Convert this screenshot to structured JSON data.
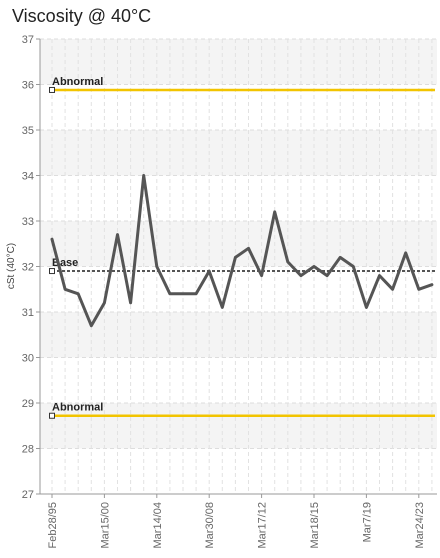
{
  "chart_data": {
    "type": "line",
    "title": "Viscosity @ 40°C",
    "ylabel": "cSt (40°C)",
    "xlabel": "",
    "ylim": [
      27,
      37
    ],
    "yticks": [
      27,
      28,
      29,
      30,
      31,
      32,
      33,
      34,
      35,
      36,
      37
    ],
    "grid": true,
    "x_tick_labels": [
      "Feb28/95",
      "Mar15/00",
      "Mar14/04",
      "Mar30/08",
      "Mar17/12",
      "Mar18/15",
      "Mar7/19",
      "Mar24/23"
    ],
    "x_tick_positions": [
      0,
      4,
      8,
      12,
      16,
      20,
      24,
      28
    ],
    "series": [
      {
        "values": [
          32.6,
          31.5,
          31.4,
          30.7,
          31.2,
          32.7,
          31.2,
          34.0,
          32.0,
          31.4,
          31.4,
          31.4,
          31.9,
          31.1,
          32.2,
          32.4,
          31.8,
          33.2,
          32.1,
          31.8,
          32.0,
          31.8,
          32.2,
          32.0,
          31.1,
          31.8,
          31.5,
          32.3,
          31.5,
          31.6
        ],
        "color": "#555555"
      }
    ],
    "reference_lines": [
      {
        "label": "Abnormal",
        "value": 35.88,
        "color": "#f2c400",
        "style": "solid"
      },
      {
        "label": "Base",
        "value": 31.9,
        "color": "#555555",
        "style": "dashed"
      },
      {
        "label": "Abnormal",
        "value": 28.72,
        "color": "#f2c400",
        "style": "solid"
      }
    ]
  }
}
